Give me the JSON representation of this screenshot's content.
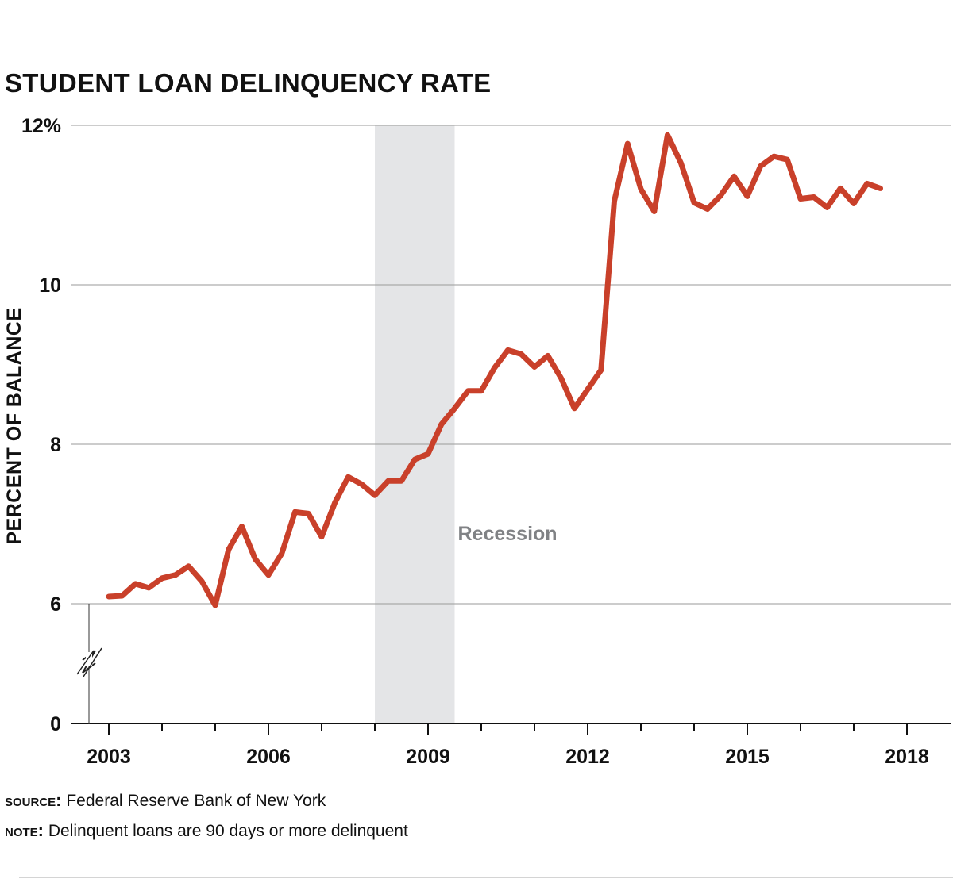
{
  "title": "STUDENT LOAN DELINQUENCY RATE",
  "footer": {
    "source_label": "SOURCE:",
    "source_text": "Federal Reserve Bank of New York",
    "note_label": "NOTE:",
    "note_text": "Delinquent loans are 90 days or more delinquent"
  },
  "colors": {
    "line": "#c9402a",
    "recession": "#e4e5e7",
    "grid": "#9a9a9a",
    "annotation": "#808285"
  },
  "chart_data": {
    "type": "line",
    "title": "STUDENT LOAN DELINQUENCY RATE",
    "xlabel": "",
    "ylabel": "PERCENT OF BALANCE",
    "x_ticks": [
      "2003",
      "2006",
      "2009",
      "2012",
      "2015",
      "2018"
    ],
    "x_tick_values": [
      2003,
      2006,
      2009,
      2012,
      2015,
      2018
    ],
    "y_tick_labels": [
      "0",
      "6",
      "8",
      "10",
      "12%"
    ],
    "y_tick_values": [
      0,
      6,
      8,
      10,
      12
    ],
    "y_axis_break": "between 0 and 6",
    "xlim": [
      2002.5,
      2018.7
    ],
    "grid": true,
    "recession": {
      "label": "Recession",
      "start": 2008.0,
      "end": 2009.5
    },
    "series": [
      {
        "x": [
          2003.0,
          2003.25,
          2003.5,
          2003.75,
          2004.0,
          2004.25,
          2004.5,
          2004.75,
          2005.0,
          2005.25,
          2005.5,
          2005.75,
          2006.0,
          2006.25,
          2006.5,
          2006.75,
          2007.0,
          2007.25,
          2007.5,
          2007.75,
          2008.0,
          2008.25,
          2008.5,
          2008.75,
          2009.0,
          2009.25,
          2009.5,
          2009.75,
          2010.0,
          2010.25,
          2010.5,
          2010.75,
          2011.0,
          2011.25,
          2011.5,
          2011.75,
          2012.0,
          2012.25,
          2012.5,
          2012.75,
          2013.0,
          2013.25,
          2013.5,
          2013.75,
          2014.0,
          2014.25,
          2014.5,
          2014.75,
          2015.0,
          2015.25,
          2015.5,
          2015.75,
          2016.0,
          2016.25,
          2016.5,
          2016.75,
          2017.0,
          2017.25,
          2017.5
        ],
        "values": [
          6.09,
          6.1,
          6.25,
          6.2,
          6.32,
          6.36,
          6.47,
          6.28,
          5.98,
          6.68,
          6.97,
          6.56,
          6.36,
          6.63,
          7.15,
          7.13,
          6.84,
          7.27,
          7.59,
          7.5,
          7.36,
          7.54,
          7.54,
          7.81,
          7.88,
          8.25,
          8.45,
          8.67,
          8.67,
          8.96,
          9.18,
          9.13,
          8.97,
          9.11,
          8.83,
          8.45,
          8.69,
          8.93,
          11.05,
          11.77,
          11.2,
          10.92,
          11.88,
          11.53,
          11.03,
          10.95,
          11.12,
          11.36,
          11.11,
          11.49,
          11.61,
          11.57,
          11.08,
          11.1,
          10.97,
          11.21,
          11.02,
          11.27,
          11.21
        ]
      }
    ]
  }
}
